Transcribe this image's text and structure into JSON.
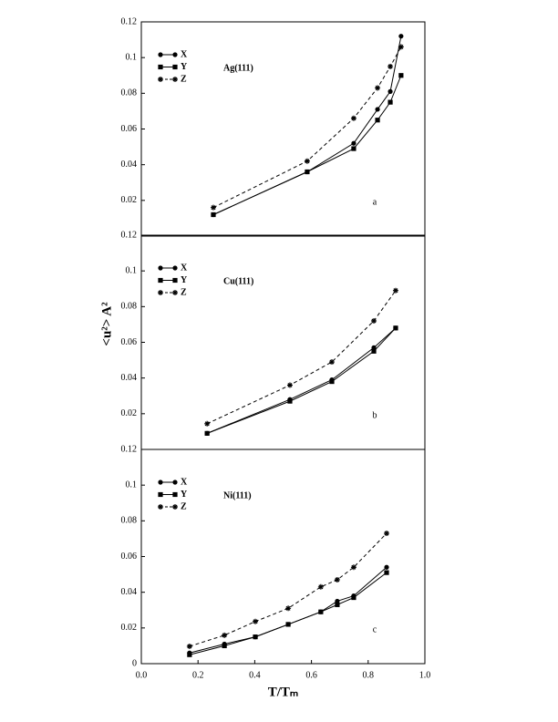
{
  "chart_data": [
    {
      "type": "line",
      "annotation": "Ag(111)",
      "panel_label": "a",
      "x": [
        0.254,
        0.585,
        0.749,
        0.833,
        0.878,
        0.916
      ],
      "series": [
        {
          "name": "X",
          "color": "#000000",
          "marker": "circle",
          "linestyle": "solid",
          "values": [
            0.012,
            0.036,
            0.052,
            0.071,
            0.081,
            0.112
          ]
        },
        {
          "name": "Y",
          "color": "#000000",
          "marker": "square",
          "linestyle": "solid",
          "values": [
            0.012,
            0.036,
            0.049,
            0.065,
            0.075,
            0.09
          ]
        },
        {
          "name": "Z",
          "color": "#000000",
          "marker": "star",
          "linestyle": "dashed",
          "values": [
            0.016,
            0.042,
            0.066,
            0.083,
            0.095,
            0.106
          ]
        }
      ],
      "xlim": [
        0,
        1
      ],
      "ylim": [
        0,
        0.12
      ],
      "yticks": [
        0.02,
        0.04,
        0.06,
        0.08,
        0.1,
        0.12
      ],
      "legend": "upper left"
    },
    {
      "type": "line",
      "annotation": "Cu(111)",
      "panel_label": "b",
      "ylabel": "<u²> A²",
      "x": [
        0.232,
        0.524,
        0.672,
        0.82,
        0.897
      ],
      "series": [
        {
          "name": "X",
          "color": "#000000",
          "marker": "circle",
          "linestyle": "solid",
          "values": [
            0.009,
            0.028,
            0.039,
            0.057,
            0.068
          ]
        },
        {
          "name": "Y",
          "color": "#000000",
          "marker": "square",
          "linestyle": "solid",
          "values": [
            0.009,
            0.027,
            0.038,
            0.055,
            0.068
          ]
        },
        {
          "name": "Z",
          "color": "#000000",
          "marker": "star",
          "linestyle": "dashed",
          "values": [
            0.0144,
            0.036,
            0.049,
            0.072,
            0.089
          ]
        }
      ],
      "xlim": [
        0,
        1
      ],
      "ylim": [
        0,
        0.12
      ],
      "yticks": [
        0.02,
        0.04,
        0.06,
        0.08,
        0.1,
        0.12
      ],
      "legend": "upper left"
    },
    {
      "type": "line",
      "annotation": "Ni(111)",
      "panel_label": "c",
      "xlabel": "T/Tₘ",
      "x": [
        0.17,
        0.293,
        0.402,
        0.518,
        0.633,
        0.691,
        0.749,
        0.865
      ],
      "series": [
        {
          "name": "X",
          "color": "#000000",
          "marker": "circle",
          "linestyle": "solid",
          "values": [
            0.006,
            0.011,
            0.015,
            0.022,
            0.029,
            0.035,
            0.038,
            0.054
          ]
        },
        {
          "name": "Y",
          "color": "#000000",
          "marker": "square",
          "linestyle": "solid",
          "values": [
            0.005,
            0.01,
            0.015,
            0.022,
            0.029,
            0.033,
            0.037,
            0.051
          ]
        },
        {
          "name": "Z",
          "color": "#000000",
          "marker": "star",
          "linestyle": "dashed",
          "values": [
            0.0097,
            0.0159,
            0.0236,
            0.031,
            0.043,
            0.047,
            0.054,
            0.073
          ]
        }
      ],
      "xlim": [
        0,
        1
      ],
      "ylim": [
        0,
        0.12
      ],
      "xticks": [
        {
          "value": 0,
          "label": "0.0"
        },
        0.2,
        0.4,
        0.6,
        0.8,
        {
          "value": 1,
          "label": "1.0"
        }
      ],
      "yticks": [
        0,
        0.02,
        0.04,
        0.06,
        0.08,
        0.1,
        0.12
      ],
      "legend": "upper left"
    }
  ]
}
